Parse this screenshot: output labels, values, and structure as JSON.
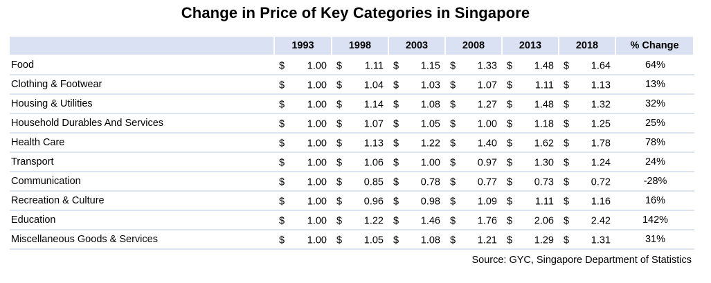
{
  "chart_data": {
    "type": "table",
    "title": "Change in Price of Key Categories in Singapore",
    "columns": [
      "",
      "1993",
      "1998",
      "2003",
      "2008",
      "2013",
      "2018",
      "% Change"
    ],
    "currency_symbol": "$",
    "rows": [
      {
        "category": "Food",
        "values": [
          "1.00",
          "1.11",
          "1.15",
          "1.33",
          "1.48",
          "1.64"
        ],
        "change": "64%"
      },
      {
        "category": "Clothing & Footwear",
        "values": [
          "1.00",
          "1.04",
          "1.03",
          "1.07",
          "1.11",
          "1.13"
        ],
        "change": "13%"
      },
      {
        "category": "Housing & Utilities",
        "values": [
          "1.00",
          "1.14",
          "1.08",
          "1.27",
          "1.48",
          "1.32"
        ],
        "change": "32%"
      },
      {
        "category": "Household Durables And Services",
        "values": [
          "1.00",
          "1.07",
          "1.05",
          "1.00",
          "1.18",
          "1.25"
        ],
        "change": "25%"
      },
      {
        "category": "Health Care",
        "values": [
          "1.00",
          "1.13",
          "1.22",
          "1.40",
          "1.62",
          "1.78"
        ],
        "change": "78%"
      },
      {
        "category": "Transport",
        "values": [
          "1.00",
          "1.06",
          "1.00",
          "0.97",
          "1.30",
          "1.24"
        ],
        "change": "24%"
      },
      {
        "category": "Communication",
        "values": [
          "1.00",
          "0.85",
          "0.78",
          "0.77",
          "0.73",
          "0.72"
        ],
        "change": "-28%"
      },
      {
        "category": "Recreation & Culture",
        "values": [
          "1.00",
          "0.96",
          "0.98",
          "1.09",
          "1.11",
          "1.16"
        ],
        "change": "16%"
      },
      {
        "category": "Education",
        "values": [
          "1.00",
          "1.22",
          "1.46",
          "1.76",
          "2.06",
          "2.42"
        ],
        "change": "142%"
      },
      {
        "category": "Miscellaneous Goods & Services",
        "values": [
          "1.00",
          "1.05",
          "1.08",
          "1.21",
          "1.29",
          "1.31"
        ],
        "change": "31%"
      }
    ],
    "source": "Source: GYC, Singapore Department of Statistics"
  },
  "colors": {
    "header_fill": "#d9e1f2",
    "row_divider": "#dde5f3"
  }
}
